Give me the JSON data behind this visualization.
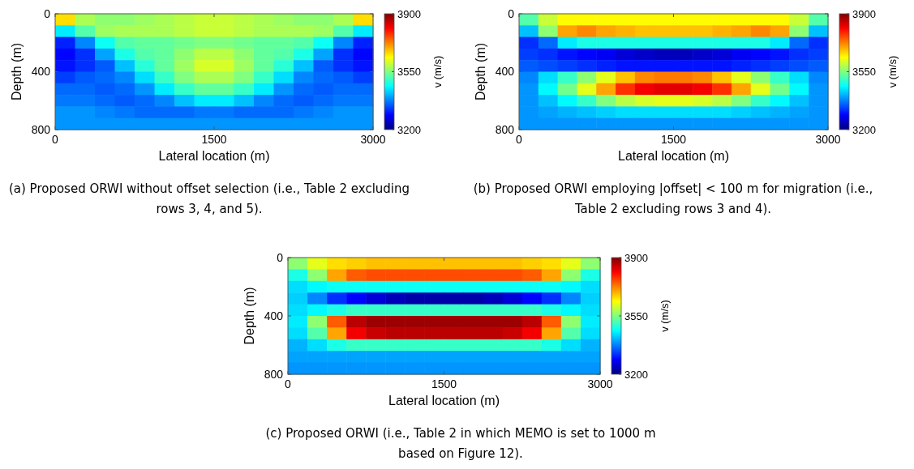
{
  "chart_data": [
    {
      "type": "heatmap",
      "xlabel": "Lateral location (m)",
      "ylabel": "Depth (m)",
      "clabel": "v (m/s)",
      "xlim": [
        0,
        3000
      ],
      "xticks": [
        0,
        1500,
        3000
      ],
      "ylim": [
        800,
        0
      ],
      "yticks": [
        0,
        400,
        800
      ],
      "clim": [
        3200,
        3900
      ],
      "cticks": [
        3200,
        3550,
        3900
      ],
      "cells": [
        [
          3660,
          3580,
          3560,
          3560,
          3570,
          3580,
          3590,
          3600,
          3600,
          3590,
          3580,
          3570,
          3560,
          3560,
          3580,
          3660
        ],
        [
          3450,
          3520,
          3570,
          3580,
          3580,
          3580,
          3590,
          3600,
          3600,
          3590,
          3580,
          3580,
          3580,
          3570,
          3520,
          3450
        ],
        [
          3310,
          3380,
          3470,
          3520,
          3530,
          3530,
          3540,
          3550,
          3550,
          3540,
          3530,
          3530,
          3520,
          3470,
          3380,
          3310
        ],
        [
          3290,
          3320,
          3400,
          3480,
          3520,
          3530,
          3560,
          3590,
          3590,
          3560,
          3530,
          3520,
          3480,
          3400,
          3320,
          3290
        ],
        [
          3300,
          3320,
          3350,
          3420,
          3490,
          3530,
          3570,
          3610,
          3610,
          3570,
          3530,
          3490,
          3420,
          3350,
          3320,
          3300
        ],
        [
          3330,
          3350,
          3360,
          3380,
          3440,
          3500,
          3550,
          3580,
          3580,
          3550,
          3500,
          3440,
          3380,
          3360,
          3350,
          3330
        ],
        [
          3360,
          3360,
          3350,
          3360,
          3390,
          3450,
          3500,
          3530,
          3530,
          3500,
          3450,
          3390,
          3360,
          3350,
          3360,
          3360
        ],
        [
          3370,
          3370,
          3360,
          3350,
          3360,
          3380,
          3420,
          3450,
          3450,
          3420,
          3380,
          3360,
          3350,
          3360,
          3370,
          3370
        ],
        [
          3390,
          3390,
          3380,
          3370,
          3360,
          3360,
          3360,
          3370,
          3370,
          3360,
          3360,
          3360,
          3370,
          3380,
          3390,
          3390
        ],
        [
          3390,
          3390,
          3390,
          3390,
          3390,
          3390,
          3390,
          3390,
          3390,
          3390,
          3390,
          3390,
          3390,
          3390,
          3390,
          3390
        ]
      ],
      "annotations": [
        "(a) Proposed ORWI without offset selection (i.e., Table 2 excluding rows 3, 4, and 5)."
      ]
    },
    {
      "type": "heatmap",
      "xlabel": "Lateral location (m)",
      "ylabel": "Depth (m)",
      "clabel": "v (m/s)",
      "xlim": [
        0,
        3000
      ],
      "xticks": [
        0,
        1500,
        3000
      ],
      "ylim": [
        800,
        0
      ],
      "yticks": [
        0,
        400,
        800
      ],
      "clim": [
        3200,
        3900
      ],
      "cticks": [
        3200,
        3550,
        3900
      ],
      "cells": [
        [
          3520,
          3600,
          3640,
          3640,
          3640,
          3640,
          3640,
          3640,
          3640,
          3640,
          3640,
          3640,
          3640,
          3640,
          3600,
          3520
        ],
        [
          3420,
          3560,
          3700,
          3720,
          3700,
          3690,
          3680,
          3680,
          3680,
          3680,
          3690,
          3700,
          3720,
          3700,
          3560,
          3420
        ],
        [
          3320,
          3360,
          3450,
          3480,
          3480,
          3480,
          3480,
          3480,
          3480,
          3480,
          3480,
          3480,
          3480,
          3450,
          3360,
          3320
        ],
        [
          3330,
          3320,
          3300,
          3290,
          3280,
          3260,
          3250,
          3240,
          3240,
          3250,
          3260,
          3280,
          3290,
          3300,
          3320,
          3330
        ],
        [
          3350,
          3340,
          3330,
          3320,
          3310,
          3300,
          3300,
          3300,
          3300,
          3300,
          3300,
          3310,
          3320,
          3330,
          3340,
          3350
        ],
        [
          3380,
          3440,
          3500,
          3560,
          3620,
          3680,
          3720,
          3730,
          3730,
          3720,
          3680,
          3620,
          3560,
          3500,
          3440,
          3380
        ],
        [
          3390,
          3460,
          3540,
          3620,
          3700,
          3780,
          3820,
          3830,
          3830,
          3820,
          3780,
          3700,
          3620,
          3540,
          3460,
          3390
        ],
        [
          3390,
          3420,
          3460,
          3500,
          3550,
          3590,
          3610,
          3620,
          3620,
          3610,
          3590,
          3550,
          3500,
          3460,
          3420,
          3390
        ],
        [
          3390,
          3400,
          3410,
          3420,
          3430,
          3440,
          3440,
          3440,
          3440,
          3440,
          3440,
          3430,
          3420,
          3410,
          3400,
          3390
        ],
        [
          3390,
          3390,
          3390,
          3390,
          3390,
          3390,
          3390,
          3390,
          3390,
          3390,
          3390,
          3390,
          3390,
          3390,
          3390,
          3390
        ]
      ],
      "annotations": [
        "(b) Proposed ORWI employing |offset| < 100 m for migration (i.e., Table 2 excluding rows 3 and 4)."
      ]
    },
    {
      "type": "heatmap",
      "xlabel": "Lateral location (m)",
      "ylabel": "Depth (m)",
      "clabel": "v (m/s)",
      "xlim": [
        0,
        3000
      ],
      "xticks": [
        0,
        1500,
        3000
      ],
      "ylim": [
        800,
        0
      ],
      "yticks": [
        0,
        400,
        800
      ],
      "clim": [
        3200,
        3900
      ],
      "cticks": [
        3200,
        3550,
        3900
      ],
      "cells": [
        [
          3560,
          3620,
          3660,
          3670,
          3680,
          3680,
          3680,
          3680,
          3680,
          3680,
          3680,
          3680,
          3670,
          3660,
          3620,
          3560
        ],
        [
          3480,
          3560,
          3700,
          3750,
          3760,
          3760,
          3760,
          3760,
          3760,
          3760,
          3760,
          3760,
          3750,
          3700,
          3560,
          3480
        ],
        [
          3440,
          3460,
          3470,
          3470,
          3470,
          3470,
          3470,
          3470,
          3470,
          3470,
          3470,
          3470,
          3470,
          3470,
          3460,
          3440
        ],
        [
          3430,
          3380,
          3320,
          3290,
          3260,
          3240,
          3230,
          3230,
          3230,
          3230,
          3240,
          3260,
          3290,
          3320,
          3380,
          3430
        ],
        [
          3440,
          3460,
          3480,
          3500,
          3500,
          3500,
          3500,
          3500,
          3500,
          3500,
          3500,
          3500,
          3500,
          3480,
          3460,
          3440
        ],
        [
          3450,
          3560,
          3750,
          3860,
          3880,
          3880,
          3880,
          3880,
          3880,
          3880,
          3880,
          3880,
          3860,
          3750,
          3560,
          3450
        ],
        [
          3440,
          3520,
          3700,
          3820,
          3850,
          3860,
          3860,
          3860,
          3860,
          3860,
          3860,
          3850,
          3820,
          3700,
          3520,
          3440
        ],
        [
          3410,
          3440,
          3480,
          3500,
          3500,
          3500,
          3500,
          3500,
          3500,
          3500,
          3500,
          3500,
          3500,
          3480,
          3440,
          3410
        ],
        [
          3400,
          3400,
          3400,
          3400,
          3400,
          3400,
          3400,
          3400,
          3400,
          3400,
          3400,
          3400,
          3400,
          3400,
          3400,
          3400
        ],
        [
          3390,
          3390,
          3390,
          3390,
          3390,
          3390,
          3390,
          3390,
          3390,
          3390,
          3390,
          3390,
          3390,
          3390,
          3390,
          3390
        ]
      ],
      "annotations": [
        "(c) Proposed ORWI (i.e., Table 2 in which MEMO is set to 1000 m based on Figure 12)."
      ]
    }
  ]
}
